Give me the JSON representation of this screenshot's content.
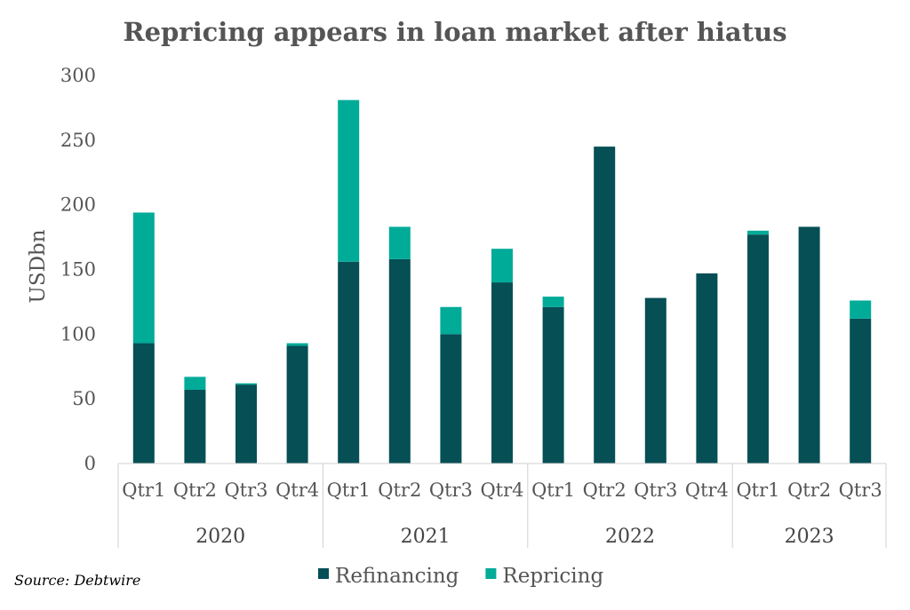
{
  "chart_data": {
    "type": "bar",
    "stacked": true,
    "title": "Repricing appears in loan market after hiatus",
    "ylabel": "USDbn",
    "xlabel": "",
    "ylim": [
      0,
      300
    ],
    "yticks": [
      "0",
      "50",
      "100",
      "150",
      "200",
      "250",
      "300"
    ],
    "grid": false,
    "legend_position": "bottom",
    "groups": [
      {
        "label": "2020",
        "categories": [
          "Qtr1",
          "Qtr2",
          "Qtr3",
          "Qtr4"
        ]
      },
      {
        "label": "2021",
        "categories": [
          "Qtr1",
          "Qtr2",
          "Qtr3",
          "Qtr4"
        ]
      },
      {
        "label": "2022",
        "categories": [
          "Qtr1",
          "Qtr2",
          "Qtr3",
          "Qtr4"
        ]
      },
      {
        "label": "2023",
        "categories": [
          "Qtr1",
          "Qtr2",
          "Qtr3"
        ]
      }
    ],
    "series": [
      {
        "name": "Refinancing",
        "color": "#054f55",
        "values": [
          93,
          57,
          61,
          91,
          156,
          158,
          100,
          140,
          121,
          245,
          128,
          147,
          177,
          183,
          112
        ]
      },
      {
        "name": "Repricing",
        "color": "#00ab98",
        "values": [
          101,
          10,
          1,
          2,
          125,
          25,
          21,
          26,
          8,
          0,
          0,
          0,
          3,
          0,
          14
        ]
      }
    ]
  },
  "source": "Source: Debtwire"
}
